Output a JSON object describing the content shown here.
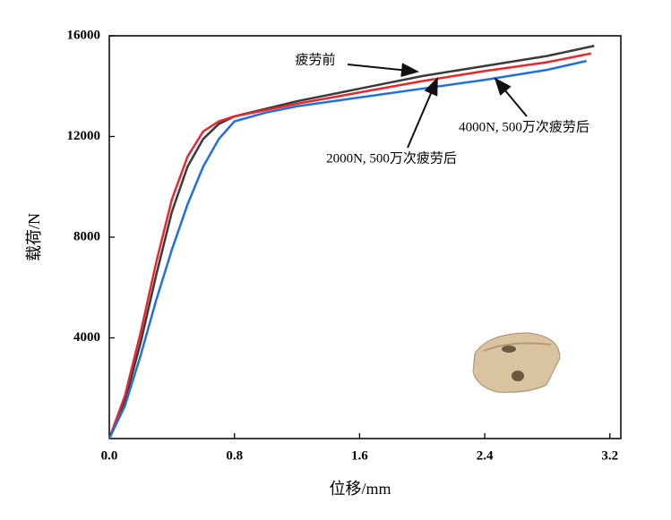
{
  "chart_data": {
    "type": "line",
    "x_label": "位移/mm",
    "y_label": "载荷/N",
    "xlim": [
      0,
      3.27
    ],
    "ylim": [
      0,
      16000
    ],
    "xticks": [
      {
        "value": 0,
        "label": "0.0"
      },
      0.8,
      1.6,
      2.4,
      3.2
    ],
    "yticks": [
      4000,
      8000,
      12000,
      16000
    ],
    "series": [
      {
        "name": "疲劳前",
        "color": "#3a3a3a",
        "x": [
          0,
          0.1,
          0.2,
          0.3,
          0.4,
          0.5,
          0.6,
          0.7,
          0.8,
          1.0,
          1.2,
          1.6,
          2.0,
          2.4,
          2.8,
          3.1
        ],
        "values": [
          0,
          1500,
          3800,
          6500,
          9000,
          10800,
          11900,
          12500,
          12800,
          13100,
          13400,
          13900,
          14400,
          14800,
          15200,
          15600
        ]
      },
      {
        "name": "2000N, 500万次疲劳后",
        "color": "#e8262b",
        "x": [
          0,
          0.1,
          0.2,
          0.3,
          0.4,
          0.5,
          0.6,
          0.7,
          0.8,
          1.0,
          1.2,
          1.6,
          2.0,
          2.4,
          2.8,
          3.08
        ],
        "values": [
          0,
          1700,
          4200,
          7000,
          9500,
          11200,
          12200,
          12600,
          12800,
          13050,
          13300,
          13750,
          14200,
          14600,
          14950,
          15300
        ]
      },
      {
        "name": "4000N, 500万次疲劳后",
        "color": "#1f6fe0",
        "x": [
          0,
          0.1,
          0.2,
          0.3,
          0.4,
          0.5,
          0.6,
          0.7,
          0.8,
          1.0,
          1.2,
          1.6,
          2.0,
          2.4,
          2.8,
          3.05
        ],
        "values": [
          0,
          1300,
          3300,
          5500,
          7500,
          9300,
          10800,
          11900,
          12600,
          12950,
          13200,
          13550,
          13900,
          14250,
          14650,
          15000
        ]
      }
    ]
  }
}
